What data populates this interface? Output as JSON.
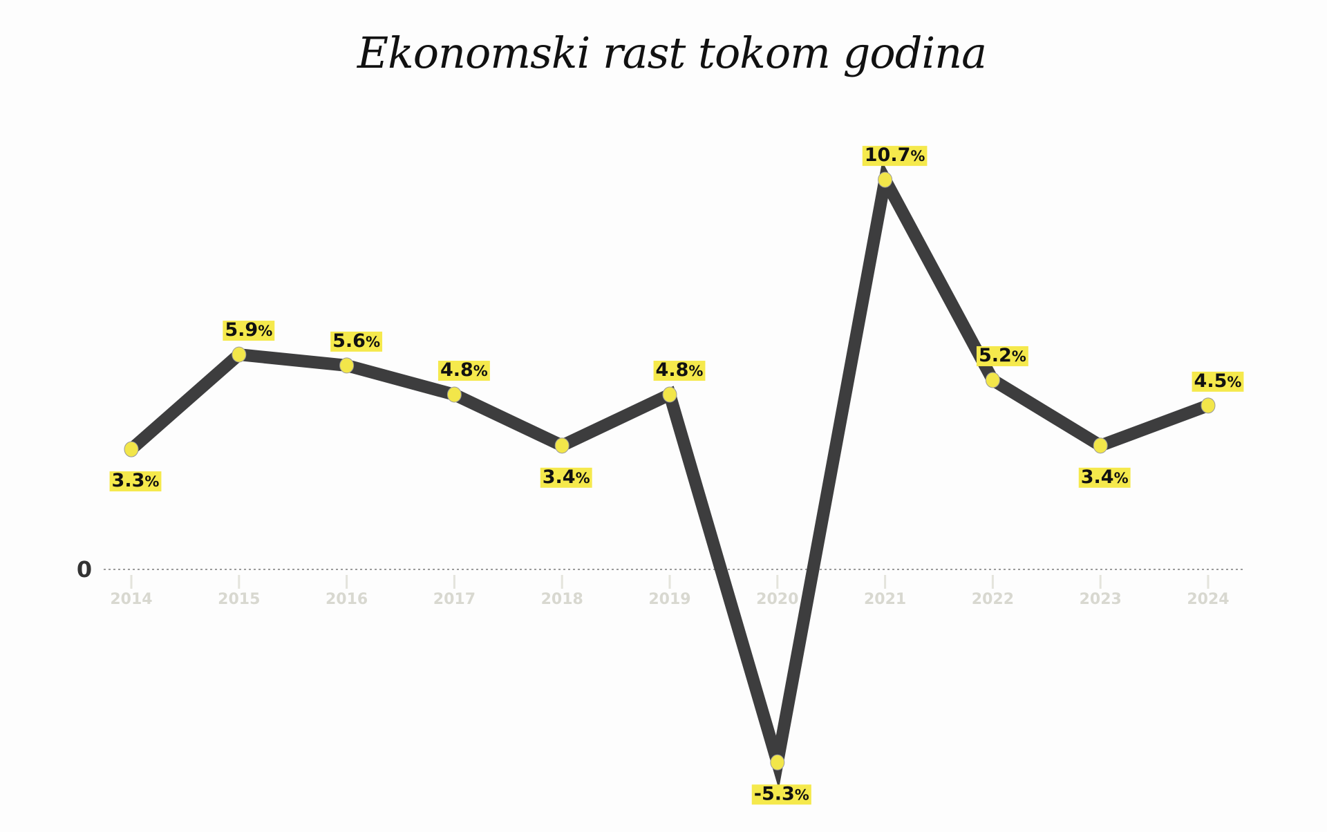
{
  "chart_data": {
    "type": "line",
    "title": "Ekonomski rast tokom godina",
    "xlabel": "",
    "ylabel": "",
    "categories": [
      "2014",
      "2015",
      "2016",
      "2017",
      "2018",
      "2019",
      "2020",
      "2021",
      "2022",
      "2023",
      "2024"
    ],
    "values": [
      3.3,
      5.9,
      5.6,
      4.8,
      3.4,
      4.8,
      -5.3,
      10.7,
      5.2,
      3.4,
      4.5
    ],
    "data_labels": [
      "3.3%",
      "5.9%",
      "5.6%",
      "4.8%",
      "3.4%",
      "4.8%",
      "-5.3%",
      "10.7%",
      "5.2%",
      "3.4%",
      "4.5%"
    ],
    "label_position": [
      "below",
      "above",
      "above",
      "above",
      "below",
      "above",
      "below",
      "above",
      "above",
      "below",
      "above"
    ],
    "y_ticks": [
      "0"
    ],
    "zero_line": "dotted",
    "grid": false,
    "legend": "none",
    "colors": {
      "line": "#3d3d3e",
      "marker": "#f2e64a",
      "label_highlight": "#f5e94c",
      "axis_text": "#d8d8d0"
    }
  }
}
